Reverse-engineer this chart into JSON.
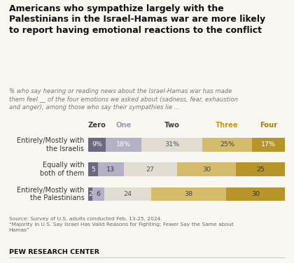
{
  "title": "Americans who sympathize largely with the\nPalestinians in the Israel-Hamas war are more likely\nto report having emotional reactions to the conflict",
  "subtitle": "% who say hearing or reading news about the Israel-Hamas war has made\nthem feel __ of the four emotions we asked about (sadness, fear, exhaustion\nand anger), among those who say their sympathies lie …",
  "categories": [
    "Entirely/Mostly with\nthe Israelis",
    "Equally with\nboth of them",
    "Entirely/Mostly with\nthe Palestinians"
  ],
  "col_headers": [
    "Zero",
    "One",
    "Two",
    "Three",
    "Four"
  ],
  "col_header_colors": [
    "#3d3d3d",
    "#a09aac",
    "#3d3d3d",
    "#c8980a",
    "#b07800"
  ],
  "data": [
    [
      9,
      18,
      31,
      25,
      17
    ],
    [
      5,
      13,
      27,
      30,
      25
    ],
    [
      2,
      6,
      24,
      38,
      30
    ]
  ],
  "bar_colors": [
    "#6b6880",
    "#b4b0c5",
    "#e2ddd2",
    "#d4bc6a",
    "#b8952a"
  ],
  "label_colors_row0": [
    "#ffffff",
    "#ffffff",
    "#555555",
    "#444444",
    "#ffffff"
  ],
  "label_colors_other": [
    "#ffffff",
    "#333333",
    "#555555",
    "#444444",
    "#333333"
  ],
  "source_text": "Source: Survey of U.S. adults conducted Feb. 13-25, 2024.\n\"Majority in U.S. Say Israel Has Valid Reasons for Fighting; Fewer Say the Same about\nHamas\"",
  "footer": "PEW RESEARCH CENTER",
  "background_color": "#f9f7f2"
}
